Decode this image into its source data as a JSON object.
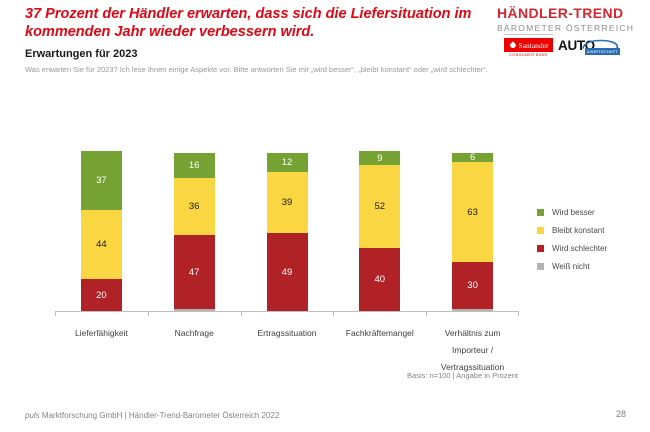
{
  "slide": {
    "title": "37 Prozent der Händler erwarten, dass sich die Liefersituation im kommenden Jahr wieder verbessern wird.",
    "subtitle": "Erwartungen für 2023",
    "question": "Was erwarten Sie für 2023? Ich lese Ihnen einige Aspekte vor. Bitte antworten Sie mit „wird besser“, „bleibt konstant“ oder „wird schlechter“.",
    "footer_source_italic": "puls",
    "footer_source_rest": " Marktforschung GmbH | Händler-Trend-Barometer Österreich 2022",
    "page_number": "28"
  },
  "brand": {
    "name_line1": "HÄNDLER-TREND",
    "name_line2": "BAROMETER ÖSTERREICH",
    "santander_label": "Santander",
    "santander_sublabel": "CONSUMER BANK",
    "auto_label": "AUTO",
    "auto_sublabel": "&WIRTSCHAFT",
    "colors": {
      "title_red": "#E30613",
      "brand_red": "#D22730",
      "santander_red": "#EC0000",
      "auto_blue": "#2B6CB3"
    }
  },
  "chart_data": {
    "type": "bar",
    "stacked": true,
    "unit": "percent",
    "ylim": [
      0,
      100
    ],
    "grid": false,
    "legend_position": "right",
    "note": "Basis: n=100 | Angabe in Prozent",
    "categories": [
      "Lieferfähigkeit",
      "Nachfrage",
      "Ertragssituation",
      "Fachkräftemangel",
      "Verhältnis zum Importeur / Vertragssituation"
    ],
    "category_label_lines": [
      [
        "Lieferfähigkeit"
      ],
      [
        "Nachfrage"
      ],
      [
        "Ertragssituation"
      ],
      [
        "Fachkräftemangel"
      ],
      [
        "Verhältnis zum",
        "Importeur /",
        "Vertragssituation"
      ]
    ],
    "series": [
      {
        "name": "Wird besser",
        "color": "#76A233",
        "label_color": "#FFFFFF",
        "values": [
          37,
          16,
          12,
          9,
          6
        ],
        "show_labels": true
      },
      {
        "name": "Bleibt konstant",
        "color": "#FAD643",
        "label_color": "#1A1A1A",
        "values": [
          44,
          36,
          39,
          52,
          63
        ],
        "show_labels": true
      },
      {
        "name": "Wird schlechter",
        "color": "#B02226",
        "label_color": "#FFFFFF",
        "values": [
          20,
          47,
          49,
          40,
          30
        ],
        "show_labels": true
      },
      {
        "name": "Weiß nicht",
        "color": "#B3B3B3",
        "label_color": "#1A1A1A",
        "values": [
          0,
          1,
          0,
          0,
          1
        ],
        "show_labels": false
      }
    ]
  }
}
